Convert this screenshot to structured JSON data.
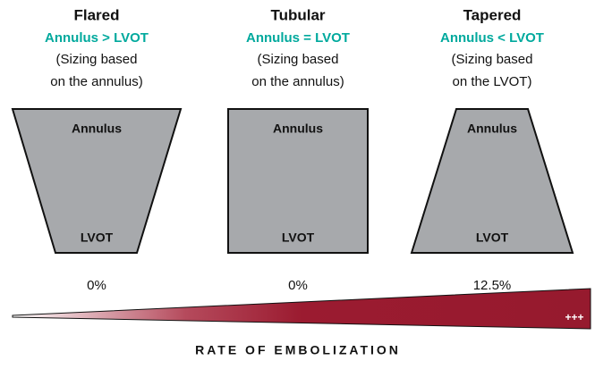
{
  "columns": [
    {
      "title": "Flared",
      "condition": "Annulus > LVOT",
      "sizing": [
        "(Sizing based",
        "on the annulus)"
      ],
      "top": "Annulus",
      "bottom": "LVOT",
      "rate": "0%"
    },
    {
      "title": "Tubular",
      "condition": "Annulus = LVOT",
      "sizing": [
        "(Sizing based",
        "on the annulus)"
      ],
      "top": "Annulus",
      "bottom": "LVOT",
      "rate": "0%"
    },
    {
      "title": "Tapered",
      "condition": "Annulus < LVOT",
      "sizing": [
        "(Sizing based",
        "on the LVOT)"
      ],
      "top": "Annulus",
      "bottom": "LVOT",
      "rate": "12.5%"
    }
  ],
  "wedge": {
    "marker": "+++",
    "label": "RATE OF EMBOLIZATION"
  }
}
